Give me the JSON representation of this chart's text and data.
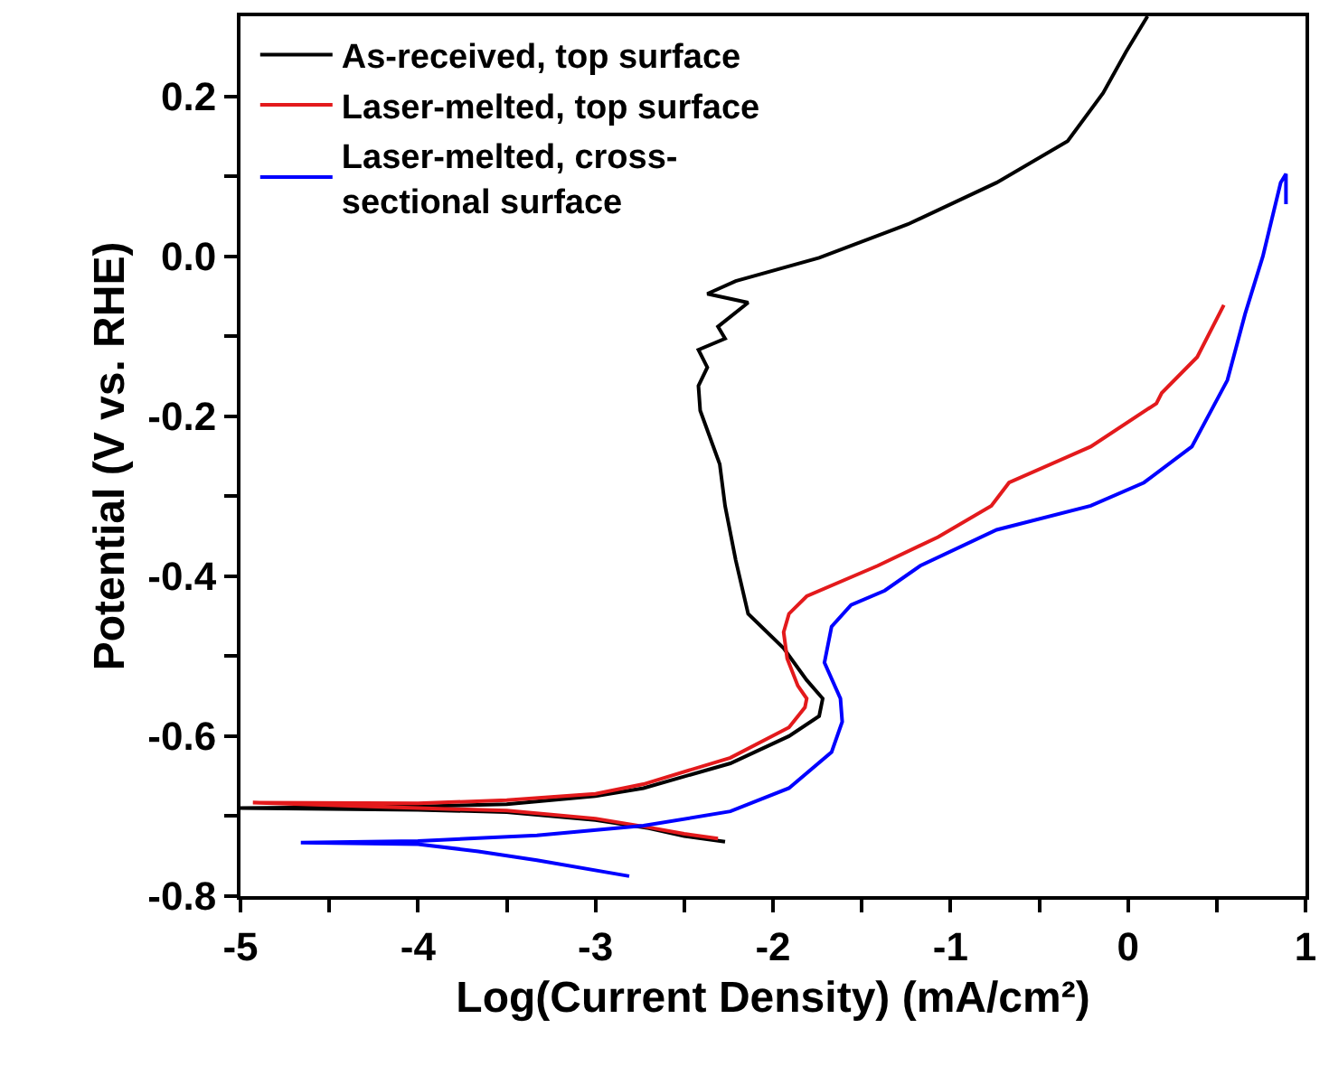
{
  "chart_data": {
    "type": "line",
    "xlabel": "Log(Current Density) (mA/cm²)",
    "ylabel": "Potential (V vs. RHE)",
    "xlim": [
      -5,
      1
    ],
    "ylim": [
      -0.8,
      0.3
    ],
    "xticks": [
      -5,
      {
        "value": -4.5,
        "label": null
      },
      -4,
      {
        "value": -3.5,
        "label": null
      },
      -3,
      {
        "value": -2.5,
        "label": null
      },
      -2,
      {
        "value": -1.5,
        "label": null
      },
      -1,
      {
        "value": -0.5,
        "label": null
      },
      0,
      {
        "value": 0.5,
        "label": null
      },
      1
    ],
    "yticks": [
      -0.8,
      {
        "value": -0.7,
        "label": null
      },
      -0.6,
      {
        "value": -0.5,
        "label": null
      },
      -0.4,
      {
        "value": -0.3,
        "label": null
      },
      -0.2,
      {
        "value": -0.1,
        "label": null
      },
      {
        "value": 0,
        "label": "0.0"
      },
      {
        "value": 0.1,
        "label": null
      },
      0.2
    ],
    "legend": "top left",
    "marker": "none",
    "line_style": "solid",
    "series": [
      {
        "name": "As-received, top surface",
        "color": "#000000",
        "x": [
          -2.27,
          -2.5,
          -2.7,
          -3.0,
          -3.5,
          -4.0,
          -5.0,
          -4.0,
          -3.5,
          -3.0,
          -2.73,
          -2.24,
          -1.91,
          -1.74,
          -1.72,
          -1.81,
          -1.94,
          -2.14,
          -2.21,
          -2.27,
          -2.3,
          -2.41,
          -2.42,
          -2.37,
          -2.42,
          -2.27,
          -2.31,
          -2.14,
          -2.37,
          -2.21,
          -1.74,
          -1.24,
          -0.74,
          -0.34,
          -0.14,
          -0.01,
          0.11
        ],
        "values": [
          -0.732,
          -0.725,
          -0.715,
          -0.705,
          -0.695,
          -0.692,
          -0.69,
          -0.688,
          -0.685,
          -0.675,
          -0.665,
          -0.634,
          -0.6,
          -0.575,
          -0.553,
          -0.53,
          -0.49,
          -0.447,
          -0.38,
          -0.312,
          -0.26,
          -0.193,
          -0.162,
          -0.139,
          -0.117,
          -0.103,
          -0.088,
          -0.058,
          -0.047,
          -0.031,
          -0.002,
          0.04,
          0.092,
          0.144,
          0.204,
          0.256,
          0.3
        ]
      },
      {
        "name": "Laser-melted, top surface",
        "color": "#e31a1c",
        "x": [
          -2.31,
          -2.5,
          -2.7,
          -3.0,
          -3.5,
          -4.0,
          -4.93,
          -4.0,
          -3.5,
          -3.0,
          -2.73,
          -2.24,
          -1.91,
          -1.82,
          -1.81,
          -1.86,
          -1.92,
          -1.94,
          -1.91,
          -1.81,
          -1.41,
          -1.07,
          -0.77,
          -0.67,
          -0.21,
          0.16,
          0.19,
          0.39,
          0.54
        ],
        "values": [
          -0.728,
          -0.722,
          -0.714,
          -0.703,
          -0.693,
          -0.69,
          -0.683,
          -0.684,
          -0.68,
          -0.672,
          -0.66,
          -0.627,
          -0.589,
          -0.564,
          -0.553,
          -0.537,
          -0.503,
          -0.47,
          -0.447,
          -0.425,
          -0.387,
          -0.351,
          -0.312,
          -0.283,
          -0.238,
          -0.184,
          -0.171,
          -0.126,
          -0.061
        ]
      },
      {
        "name": "Laser-melted, cross-sectional surface",
        "color": "#0000ff",
        "x": [
          -2.81,
          -3.33,
          -3.66,
          -4.0,
          -4.66,
          -4.0,
          -3.33,
          -2.73,
          -2.24,
          -1.91,
          -1.67,
          -1.61,
          -1.62,
          -1.71,
          -1.67,
          -1.56,
          -1.37,
          -1.17,
          -0.74,
          -0.21,
          0.09,
          0.36,
          0.56,
          0.66,
          0.76,
          0.86,
          0.89,
          0.89
        ],
        "values": [
          -0.775,
          -0.755,
          -0.744,
          -0.735,
          -0.733,
          -0.731,
          -0.724,
          -0.712,
          -0.694,
          -0.665,
          -0.62,
          -0.582,
          -0.553,
          -0.508,
          -0.463,
          -0.436,
          -0.418,
          -0.387,
          -0.342,
          -0.312,
          -0.283,
          -0.238,
          -0.155,
          -0.072,
          0.0,
          0.092,
          0.103,
          0.065
        ]
      }
    ]
  }
}
